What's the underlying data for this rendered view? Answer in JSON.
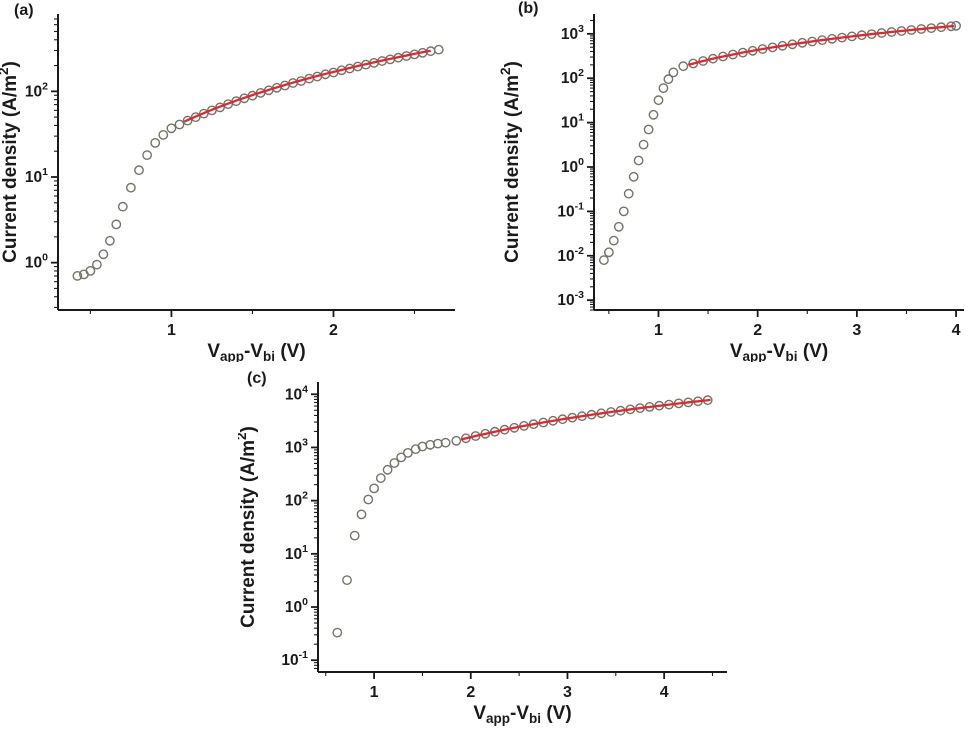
{
  "figure": {
    "background": "#ffffff",
    "description": "Three-panel semilog J-V characteristics with SCLC power-law fits"
  },
  "styles": {
    "circle_color": "#6f7569",
    "fit_color": "#e8242f",
    "axis_color": "#1a1a1a",
    "text_color": "#1a1a1a"
  },
  "chart_data": [
    {
      "id": "a",
      "type": "scatter",
      "panel_label": "(a)",
      "title": "",
      "legend": "none",
      "grid": false,
      "xlabel_parts": [
        {
          "t": "V"
        },
        {
          "t": "app",
          "type": "sub"
        },
        {
          "t": "-V"
        },
        {
          "t": "bi",
          "type": "sub"
        },
        {
          "t": " (V)"
        }
      ],
      "ylabel_parts": [
        {
          "t": "Current density (A/m"
        },
        {
          "t": "2",
          "type": "sup"
        },
        {
          "t": ")"
        }
      ],
      "x_axis": {
        "scale": "linear",
        "min": 0.3,
        "max": 2.75,
        "major_ticks": [
          1,
          2
        ],
        "minor_ticks": [
          0.5,
          1.5,
          2.5
        ]
      },
      "y_axis": {
        "scale": "log",
        "min": 0.28,
        "max": 800,
        "tick_exponents": [
          0,
          1,
          2
        ]
      },
      "series": {
        "circles": {
          "x": [
            0.42,
            0.46,
            0.5,
            0.54,
            0.58,
            0.62,
            0.66,
            0.7,
            0.75,
            0.8,
            0.85,
            0.9,
            0.95,
            1.0,
            1.05,
            1.1,
            1.15,
            1.2,
            1.25,
            1.3,
            1.35,
            1.4,
            1.45,
            1.5,
            1.55,
            1.6,
            1.65,
            1.7,
            1.75,
            1.8,
            1.85,
            1.9,
            1.95,
            2.0,
            2.05,
            2.1,
            2.15,
            2.2,
            2.25,
            2.3,
            2.35,
            2.4,
            2.45,
            2.5,
            2.55,
            2.6,
            2.65
          ],
          "y": [
            0.7,
            0.73,
            0.8,
            0.95,
            1.25,
            1.8,
            2.8,
            4.5,
            7.5,
            12,
            18,
            25,
            31,
            37,
            41,
            45.5,
            50,
            55,
            60,
            65,
            71,
            77,
            83,
            89,
            96,
            103,
            110,
            117,
            125,
            132,
            141,
            149,
            158,
            166,
            176,
            185,
            195,
            205,
            215,
            226,
            236,
            247,
            259,
            270,
            282,
            294,
            307
          ]
        },
        "fit": {
          "name": "power-law-fit",
          "coefficient": 37.5,
          "exponent": 2.17,
          "x_start": 1.08,
          "x_end": 2.6
        }
      }
    },
    {
      "id": "b",
      "type": "scatter",
      "panel_label": "(b)",
      "title": "",
      "legend": "none",
      "grid": false,
      "xlabel_parts": [
        {
          "t": "V"
        },
        {
          "t": "app",
          "type": "sub"
        },
        {
          "t": "-V"
        },
        {
          "t": "bi",
          "type": "sub"
        },
        {
          "t": " (V)"
        }
      ],
      "ylabel_parts": [
        {
          "t": "Current density (A/m"
        },
        {
          "t": "2",
          "type": "sup"
        },
        {
          "t": ")"
        }
      ],
      "x_axis": {
        "scale": "linear",
        "min": 0.35,
        "max": 4.08,
        "major_ticks": [
          1,
          2,
          3,
          4
        ],
        "minor_ticks": [
          0.5,
          1.5,
          2.5,
          3.5
        ]
      },
      "y_axis": {
        "scale": "log",
        "min": 0.0006,
        "max": 2800,
        "tick_exponents": [
          -3,
          -2,
          -1,
          0,
          1,
          2,
          3
        ]
      },
      "series": {
        "circles": {
          "x": [
            0.45,
            0.5,
            0.55,
            0.6,
            0.65,
            0.7,
            0.75,
            0.8,
            0.85,
            0.9,
            0.95,
            1.0,
            1.05,
            1.1,
            1.15,
            1.25,
            1.35,
            1.45,
            1.55,
            1.65,
            1.75,
            1.85,
            1.95,
            2.05,
            2.15,
            2.25,
            2.35,
            2.45,
            2.55,
            2.65,
            2.75,
            2.85,
            2.95,
            3.05,
            3.15,
            3.25,
            3.35,
            3.45,
            3.55,
            3.65,
            3.75,
            3.85,
            3.95,
            4.0
          ],
          "y": [
            0.008,
            0.012,
            0.022,
            0.045,
            0.1,
            0.25,
            0.6,
            1.4,
            3.2,
            7,
            15,
            32,
            60,
            95,
            135,
            187,
            215,
            244,
            275,
            308,
            342,
            378,
            416,
            455,
            496,
            538,
            582,
            627,
            674,
            722,
            772,
            823,
            876,
            930,
            986,
            1043,
            1102,
            1161,
            1223,
            1285,
            1349,
            1415,
            1482,
            1517
          ]
        },
        "fit": {
          "name": "power-law-fit",
          "coefficient": 125,
          "exponent": 1.8,
          "x_start": 1.3,
          "x_end": 3.98
        }
      }
    },
    {
      "id": "c",
      "type": "scatter",
      "panel_label": "(c)",
      "title": "",
      "legend": "none",
      "grid": false,
      "xlabel_parts": [
        {
          "t": "V"
        },
        {
          "t": "app",
          "type": "sub"
        },
        {
          "t": "-V"
        },
        {
          "t": "bi",
          "type": "sub"
        },
        {
          "t": " (V)"
        }
      ],
      "ylabel_parts": [
        {
          "t": "Current density (A/m"
        },
        {
          "t": "2",
          "type": "sup"
        },
        {
          "t": ")"
        }
      ],
      "x_axis": {
        "scale": "linear",
        "min": 0.42,
        "max": 4.65,
        "major_ticks": [
          1,
          2,
          3,
          4
        ],
        "minor_ticks": [
          0.5,
          1.5,
          2.5,
          3.5,
          4.5
        ]
      },
      "y_axis": {
        "scale": "log",
        "min": 0.06,
        "max": 17000,
        "tick_exponents": [
          -1,
          0,
          1,
          2,
          3,
          4
        ]
      },
      "series": {
        "circles": {
          "x": [
            0.62,
            0.72,
            0.8,
            0.87,
            0.94,
            1.0,
            1.07,
            1.14,
            1.21,
            1.28,
            1.35,
            1.43,
            1.5,
            1.58,
            1.66,
            1.74,
            1.85,
            1.95,
            2.05,
            2.15,
            2.25,
            2.35,
            2.45,
            2.55,
            2.65,
            2.75,
            2.85,
            2.95,
            3.05,
            3.15,
            3.25,
            3.35,
            3.45,
            3.55,
            3.65,
            3.75,
            3.85,
            3.95,
            4.05,
            4.15,
            4.25,
            4.35,
            4.45
          ],
          "y": [
            0.33,
            3.2,
            22,
            55,
            105,
            170,
            265,
            380,
            510,
            650,
            790,
            930,
            1040,
            1120,
            1180,
            1230,
            1335,
            1483,
            1639,
            1803,
            1974,
            2154,
            2341,
            2536,
            2739,
            2949,
            3168,
            3394,
            3628,
            3870,
            4119,
            4377,
            4642,
            4915,
            5196,
            5484,
            5781,
            6085,
            6397,
            6717,
            7044,
            7380,
            7723
          ]
        },
        "fit": {
          "name": "power-law-fit",
          "coefficient": 390,
          "exponent": 2.0,
          "x_start": 1.9,
          "x_end": 4.48
        }
      }
    }
  ]
}
